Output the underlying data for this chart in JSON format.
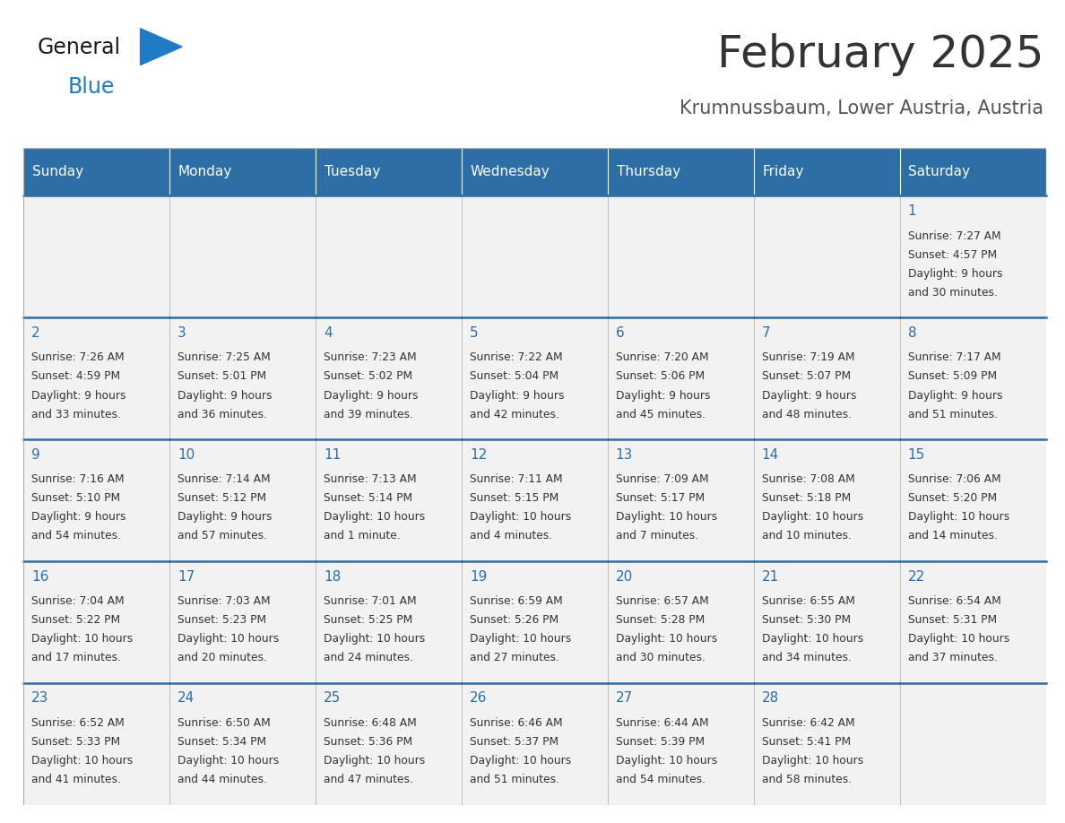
{
  "title": "February 2025",
  "subtitle": "Krumnussbaum, Lower Austria, Austria",
  "header_color": "#2E6EA6",
  "header_text_color": "#FFFFFF",
  "cell_bg_color": "#F2F2F2",
  "border_color": "#AAAAAA",
  "day_number_color": "#2E6EA6",
  "text_color": "#333333",
  "days_of_week": [
    "Sunday",
    "Monday",
    "Tuesday",
    "Wednesday",
    "Thursday",
    "Friday",
    "Saturday"
  ],
  "weeks": [
    [
      {
        "day": null,
        "sunrise": null,
        "sunset": null,
        "daylight": null
      },
      {
        "day": null,
        "sunrise": null,
        "sunset": null,
        "daylight": null
      },
      {
        "day": null,
        "sunrise": null,
        "sunset": null,
        "daylight": null
      },
      {
        "day": null,
        "sunrise": null,
        "sunset": null,
        "daylight": null
      },
      {
        "day": null,
        "sunrise": null,
        "sunset": null,
        "daylight": null
      },
      {
        "day": null,
        "sunrise": null,
        "sunset": null,
        "daylight": null
      },
      {
        "day": 1,
        "sunrise": "7:27 AM",
        "sunset": "4:57 PM",
        "daylight": "9 hours\nand 30 minutes."
      }
    ],
    [
      {
        "day": 2,
        "sunrise": "7:26 AM",
        "sunset": "4:59 PM",
        "daylight": "9 hours\nand 33 minutes."
      },
      {
        "day": 3,
        "sunrise": "7:25 AM",
        "sunset": "5:01 PM",
        "daylight": "9 hours\nand 36 minutes."
      },
      {
        "day": 4,
        "sunrise": "7:23 AM",
        "sunset": "5:02 PM",
        "daylight": "9 hours\nand 39 minutes."
      },
      {
        "day": 5,
        "sunrise": "7:22 AM",
        "sunset": "5:04 PM",
        "daylight": "9 hours\nand 42 minutes."
      },
      {
        "day": 6,
        "sunrise": "7:20 AM",
        "sunset": "5:06 PM",
        "daylight": "9 hours\nand 45 minutes."
      },
      {
        "day": 7,
        "sunrise": "7:19 AM",
        "sunset": "5:07 PM",
        "daylight": "9 hours\nand 48 minutes."
      },
      {
        "day": 8,
        "sunrise": "7:17 AM",
        "sunset": "5:09 PM",
        "daylight": "9 hours\nand 51 minutes."
      }
    ],
    [
      {
        "day": 9,
        "sunrise": "7:16 AM",
        "sunset": "5:10 PM",
        "daylight": "9 hours\nand 54 minutes."
      },
      {
        "day": 10,
        "sunrise": "7:14 AM",
        "sunset": "5:12 PM",
        "daylight": "9 hours\nand 57 minutes."
      },
      {
        "day": 11,
        "sunrise": "7:13 AM",
        "sunset": "5:14 PM",
        "daylight": "10 hours\nand 1 minute."
      },
      {
        "day": 12,
        "sunrise": "7:11 AM",
        "sunset": "5:15 PM",
        "daylight": "10 hours\nand 4 minutes."
      },
      {
        "day": 13,
        "sunrise": "7:09 AM",
        "sunset": "5:17 PM",
        "daylight": "10 hours\nand 7 minutes."
      },
      {
        "day": 14,
        "sunrise": "7:08 AM",
        "sunset": "5:18 PM",
        "daylight": "10 hours\nand 10 minutes."
      },
      {
        "day": 15,
        "sunrise": "7:06 AM",
        "sunset": "5:20 PM",
        "daylight": "10 hours\nand 14 minutes."
      }
    ],
    [
      {
        "day": 16,
        "sunrise": "7:04 AM",
        "sunset": "5:22 PM",
        "daylight": "10 hours\nand 17 minutes."
      },
      {
        "day": 17,
        "sunrise": "7:03 AM",
        "sunset": "5:23 PM",
        "daylight": "10 hours\nand 20 minutes."
      },
      {
        "day": 18,
        "sunrise": "7:01 AM",
        "sunset": "5:25 PM",
        "daylight": "10 hours\nand 24 minutes."
      },
      {
        "day": 19,
        "sunrise": "6:59 AM",
        "sunset": "5:26 PM",
        "daylight": "10 hours\nand 27 minutes."
      },
      {
        "day": 20,
        "sunrise": "6:57 AM",
        "sunset": "5:28 PM",
        "daylight": "10 hours\nand 30 minutes."
      },
      {
        "day": 21,
        "sunrise": "6:55 AM",
        "sunset": "5:30 PM",
        "daylight": "10 hours\nand 34 minutes."
      },
      {
        "day": 22,
        "sunrise": "6:54 AM",
        "sunset": "5:31 PM",
        "daylight": "10 hours\nand 37 minutes."
      }
    ],
    [
      {
        "day": 23,
        "sunrise": "6:52 AM",
        "sunset": "5:33 PM",
        "daylight": "10 hours\nand 41 minutes."
      },
      {
        "day": 24,
        "sunrise": "6:50 AM",
        "sunset": "5:34 PM",
        "daylight": "10 hours\nand 44 minutes."
      },
      {
        "day": 25,
        "sunrise": "6:48 AM",
        "sunset": "5:36 PM",
        "daylight": "10 hours\nand 47 minutes."
      },
      {
        "day": 26,
        "sunrise": "6:46 AM",
        "sunset": "5:37 PM",
        "daylight": "10 hours\nand 51 minutes."
      },
      {
        "day": 27,
        "sunrise": "6:44 AM",
        "sunset": "5:39 PM",
        "daylight": "10 hours\nand 54 minutes."
      },
      {
        "day": 28,
        "sunrise": "6:42 AM",
        "sunset": "5:41 PM",
        "daylight": "10 hours\nand 58 minutes."
      },
      {
        "day": null,
        "sunrise": null,
        "sunset": null,
        "daylight": null
      }
    ]
  ],
  "logo_general_color": "#1a1a1a",
  "logo_blue_color": "#1E7BC4",
  "logo_triangle_color": "#1E7BC4",
  "title_fontsize": 36,
  "subtitle_fontsize": 15,
  "header_fontsize": 11,
  "day_num_fontsize": 11,
  "cell_text_fontsize": 8.8
}
